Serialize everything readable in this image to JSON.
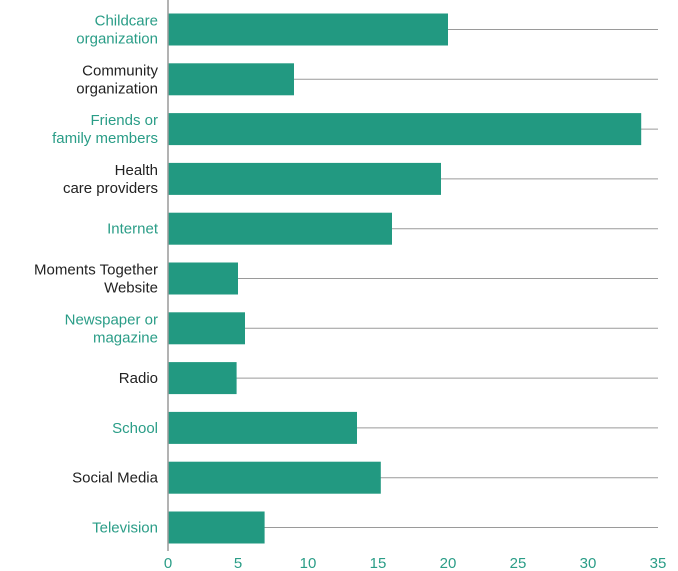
{
  "chart_data": {
    "type": "bar",
    "orientation": "horizontal",
    "categories": [
      [
        "Childcare",
        "organization"
      ],
      [
        "Community",
        "organization"
      ],
      [
        "Friends or",
        "family members"
      ],
      [
        "Health",
        "care providers"
      ],
      [
        "Internet"
      ],
      [
        "Moments Together",
        "Website"
      ],
      [
        "Newspaper or",
        "magazine"
      ],
      [
        "Radio"
      ],
      [
        "School"
      ],
      [
        "Social Media"
      ],
      [
        "Television"
      ]
    ],
    "values": [
      20,
      9,
      33.8,
      19.5,
      16,
      5,
      5.5,
      4.9,
      13.5,
      15.2,
      6.9
    ],
    "xlim": [
      0,
      35
    ],
    "xticks": [
      "0",
      "5",
      "10",
      "15",
      "20",
      "25",
      "30",
      "35"
    ],
    "title": "",
    "xlabel": "",
    "ylabel": "",
    "grid": "horizontal lines through each category row",
    "label_colors": [
      "#2a9d87",
      "#222222"
    ]
  },
  "colors": {
    "bar": "#229981",
    "grid": "#9a9a9a",
    "axis": "#9a9a9a",
    "accent_label": "#2a9d87",
    "dark_label": "#222222"
  }
}
